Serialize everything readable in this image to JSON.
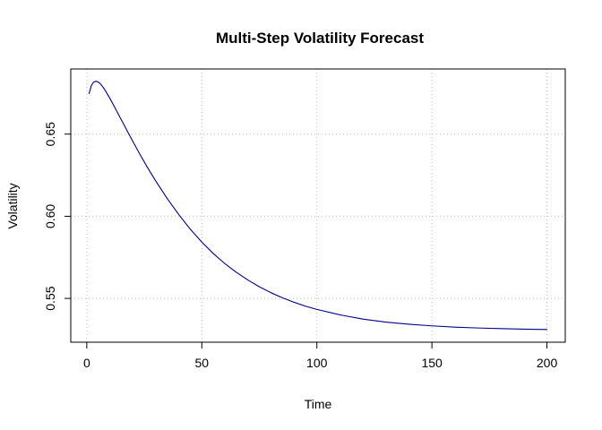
{
  "chart_data": {
    "type": "line",
    "title": "Multi-Step Volatility Forecast",
    "xlabel": "Time",
    "ylabel": "Volatility",
    "xlim": [
      1,
      200
    ],
    "ylim": [
      0.5295,
      0.6835
    ],
    "x_ticks": [
      0,
      50,
      100,
      150,
      200
    ],
    "x_tick_labels": [
      "0",
      "50",
      "100",
      "150",
      "200"
    ],
    "y_ticks": [
      0.55,
      0.6,
      0.65
    ],
    "y_tick_labels": [
      "0.55",
      "0.60",
      "0.65"
    ],
    "grid": true,
    "legend": "none",
    "series": [
      {
        "color": "#00008b",
        "x": [
          1,
          2,
          3,
          4,
          5,
          6,
          7,
          8,
          10,
          12,
          14,
          16,
          18,
          20,
          23,
          26,
          30,
          35,
          40,
          45,
          50,
          55,
          60,
          65,
          70,
          75,
          80,
          85,
          90,
          95,
          100,
          110,
          120,
          130,
          140,
          150,
          160,
          170,
          180,
          190,
          200
        ],
        "y": [
          0.6747,
          0.6796,
          0.6817,
          0.6822,
          0.6817,
          0.6805,
          0.6787,
          0.6766,
          0.6719,
          0.6667,
          0.6614,
          0.6561,
          0.6508,
          0.6456,
          0.6379,
          0.6306,
          0.6214,
          0.6107,
          0.601,
          0.5921,
          0.5843,
          0.5773,
          0.5712,
          0.5659,
          0.5612,
          0.5571,
          0.5535,
          0.5504,
          0.5477,
          0.5453,
          0.5433,
          0.54,
          0.5374,
          0.5356,
          0.5343,
          0.5333,
          0.5325,
          0.532,
          0.5316,
          0.5313,
          0.5311
        ]
      }
    ]
  }
}
